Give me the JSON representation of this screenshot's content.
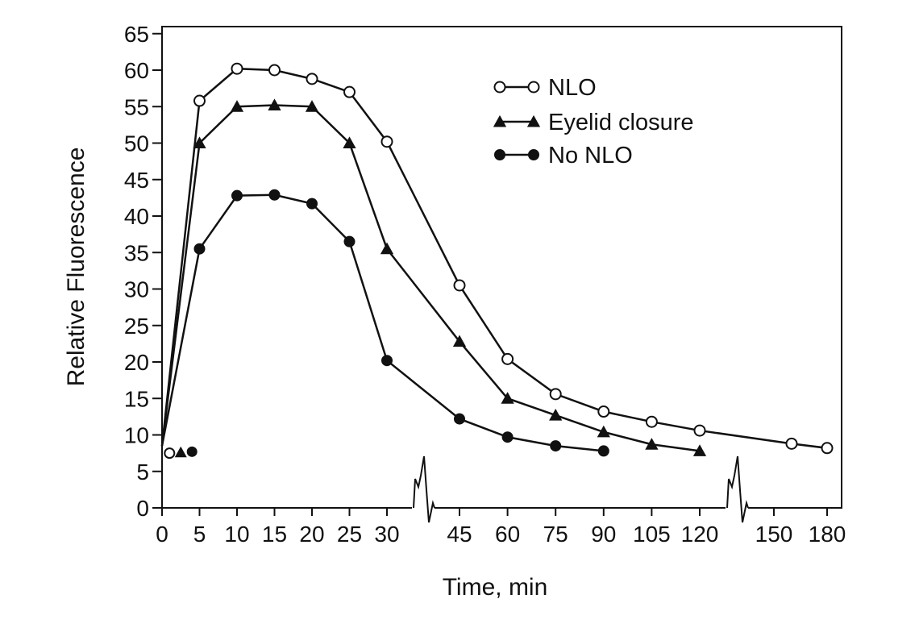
{
  "chart_data": {
    "type": "line",
    "title": "",
    "xlabel": "Time, min",
    "ylabel": "Relative Fluorescence",
    "ylim": [
      0,
      65
    ],
    "yticks": [
      "0",
      "5",
      "10",
      "15",
      "20",
      "25",
      "30",
      "35",
      "40",
      "45",
      "50",
      "55",
      "60",
      "65"
    ],
    "xticks": [
      "0",
      "5",
      "10",
      "15",
      "20",
      "25",
      "30",
      "45",
      "60",
      "75",
      "90",
      "105",
      "120",
      "150",
      "180"
    ],
    "axis_breaks": [
      "between 30 and 45",
      "between 120 and 150"
    ],
    "grid": false,
    "legend_position": "top-right",
    "series": [
      {
        "name": "NLO",
        "marker": "open-circle",
        "color": "#111111",
        "points": [
          [
            0,
            8.5
          ],
          [
            5,
            55.8
          ],
          [
            10,
            60.2
          ],
          [
            15,
            60.0
          ],
          [
            20,
            58.8
          ],
          [
            25,
            57.0
          ],
          [
            30,
            50.2
          ],
          [
            45,
            30.5
          ],
          [
            60,
            20.4
          ],
          [
            75,
            15.6
          ],
          [
            90,
            13.2
          ],
          [
            105,
            11.8
          ],
          [
            120,
            10.6
          ],
          [
            160,
            8.8
          ],
          [
            180,
            8.2
          ]
        ]
      },
      {
        "name": "Eyelid closure",
        "marker": "filled-triangle",
        "color": "#111111",
        "points": [
          [
            0,
            8.5
          ],
          [
            5,
            50.0
          ],
          [
            10,
            55.0
          ],
          [
            15,
            55.2
          ],
          [
            20,
            55.0
          ],
          [
            25,
            50.0
          ],
          [
            30,
            35.5
          ],
          [
            45,
            22.8
          ],
          [
            60,
            15.0
          ],
          [
            75,
            12.7
          ],
          [
            90,
            10.4
          ],
          [
            105,
            8.7
          ],
          [
            120,
            7.8
          ]
        ]
      },
      {
        "name": "No NLO",
        "marker": "filled-circle",
        "color": "#111111",
        "points": [
          [
            0,
            8.5
          ],
          [
            5,
            35.5
          ],
          [
            10,
            42.8
          ],
          [
            15,
            42.9
          ],
          [
            20,
            41.7
          ],
          [
            25,
            36.5
          ],
          [
            30,
            20.2
          ],
          [
            45,
            12.2
          ],
          [
            60,
            9.7
          ],
          [
            75,
            8.5
          ],
          [
            90,
            7.8
          ]
        ]
      }
    ],
    "baseline_markers": [
      {
        "series": "NLO",
        "marker": "open-circle",
        "x": 1,
        "y": 7.5
      },
      {
        "series": "Eyelid closure",
        "marker": "filled-triangle",
        "x": 2.5,
        "y": 7.6
      },
      {
        "series": "No NLO",
        "marker": "filled-circle",
        "x": 4,
        "y": 7.7
      }
    ]
  }
}
